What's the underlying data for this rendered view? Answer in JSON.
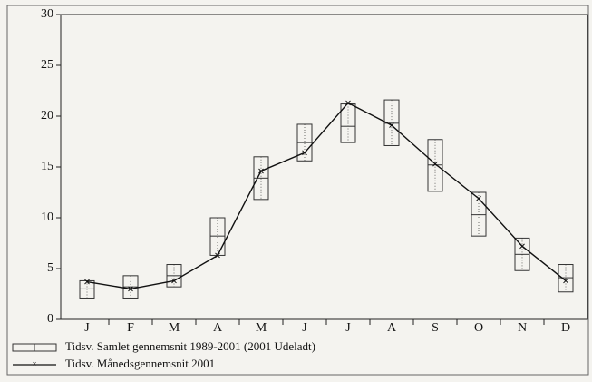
{
  "chart_data": {
    "type": "range-line",
    "categories": [
      "J",
      "F",
      "M",
      "A",
      "M",
      "J",
      "J",
      "A",
      "S",
      "O",
      "N",
      "D"
    ],
    "ylim": [
      0,
      30
    ],
    "yticks": [
      0,
      5,
      10,
      15,
      20,
      25,
      30
    ],
    "series": [
      {
        "name": "Tidsv. Samlet gennemsnit  1989-2001 (2001 Udeladt)",
        "color": "#333333",
        "low": [
          2.1,
          2.1,
          3.2,
          6.3,
          11.8,
          15.6,
          17.4,
          17.1,
          12.6,
          8.2,
          4.8,
          2.7
        ],
        "mid": [
          3.0,
          3.2,
          4.3,
          8.2,
          13.9,
          17.4,
          19.0,
          19.3,
          15.2,
          10.3,
          6.4,
          4.1
        ],
        "high": [
          3.8,
          4.3,
          5.4,
          10.0,
          16.0,
          19.2,
          21.2,
          21.6,
          17.7,
          12.5,
          8.0,
          5.4
        ]
      },
      {
        "name": "Tidsv. Månedsgennemsnit  2001",
        "color": "#111111",
        "values": [
          3.7,
          3.0,
          3.8,
          6.3,
          14.6,
          16.4,
          21.3,
          19.1,
          15.3,
          11.9,
          7.2,
          3.8
        ]
      }
    ]
  }
}
